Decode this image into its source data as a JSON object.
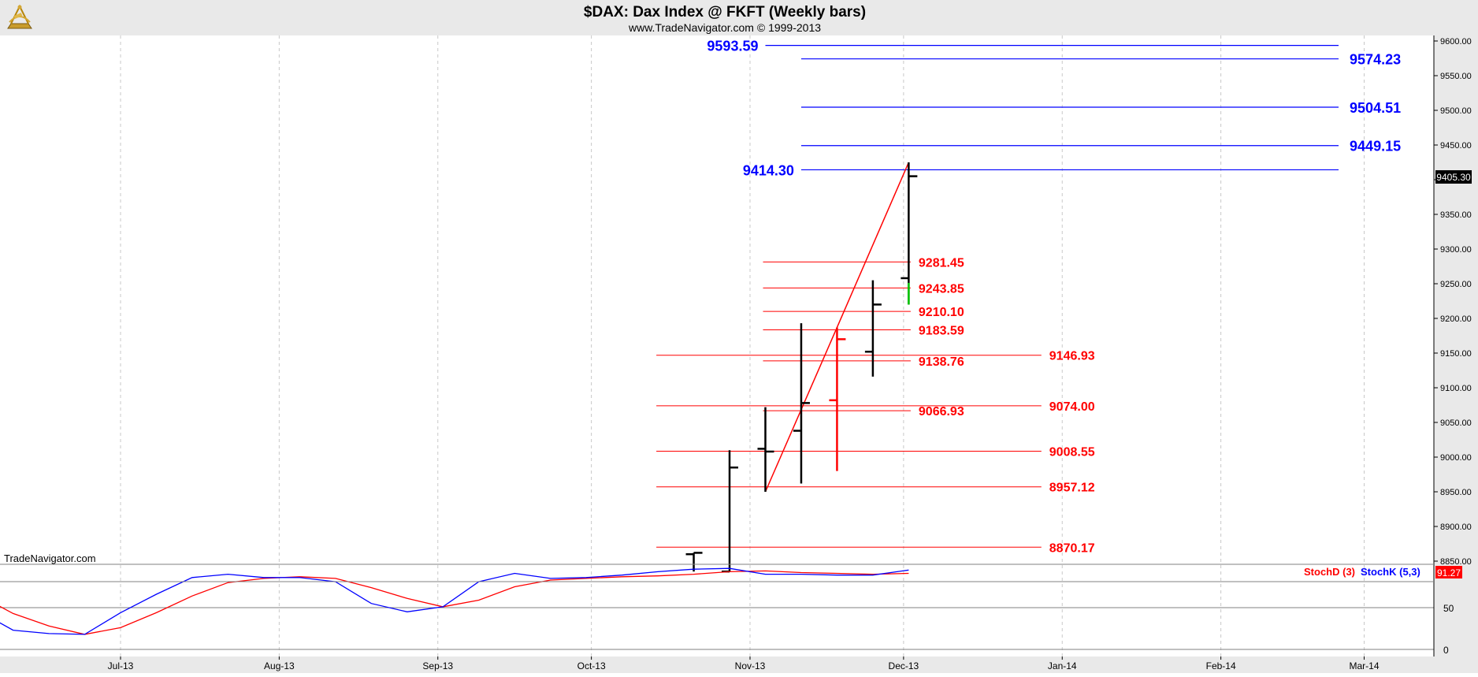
{
  "header": {
    "title": "$DAX:  Dax Index @ FKFT  (Weekly bars)",
    "subtitle": "www.TradeNavigator.com © 1999-2013"
  },
  "watermark": "TradeNavigator.com",
  "logo": {
    "icon": "trade-navigator-sextant-icon"
  },
  "colors": {
    "background": "#ffffff",
    "header_bg": "#e9e9e9",
    "grid": "#c8c8c8",
    "bar": "#000000",
    "down_bar": "#ff0000",
    "up_bar": "#00cc00",
    "projection": "#0000ff",
    "retracement": "#ff0000",
    "stoch_d": "#ff0000",
    "stoch_k": "#0000ff",
    "last_price_bg": "#000000"
  },
  "chart_data": {
    "type": "line",
    "price_panel": {
      "y_ticks": [
        9600,
        9550,
        9500,
        9450,
        9400,
        9350,
        9300,
        9250,
        9200,
        9150,
        9100,
        9050,
        9000,
        8950,
        8900,
        8850
      ],
      "y_tick_labels": [
        "9600.00",
        "9550.00",
        "9500.00",
        "9450.00",
        "9400.00",
        "9350.00",
        "9300.00",
        "9250.00",
        "9200.00",
        "9150.00",
        "9100.00",
        "9050.00",
        "9000.00",
        "8950.00",
        "8900.00",
        "8850.00"
      ],
      "ylim": [
        8835,
        9610
      ],
      "last_price": 9405.3,
      "last_price_label": "9405.30",
      "bars": [
        {
          "date": "2013-10-21",
          "open": 8860,
          "high": 8862,
          "low": 8835,
          "close": 8862,
          "color": "black"
        },
        {
          "date": "2013-10-28",
          "open": 8835,
          "high": 9010,
          "low": 8835,
          "close": 8985,
          "color": "black"
        },
        {
          "date": "2013-11-04",
          "open": 9012,
          "high": 9072,
          "low": 8950,
          "close": 9008,
          "color": "black"
        },
        {
          "date": "2013-11-11",
          "open": 9038,
          "high": 9193,
          "low": 8962,
          "close": 9078,
          "color": "black"
        },
        {
          "date": "2013-11-18",
          "open": 9082,
          "high": 9187,
          "low": 8980,
          "close": 9170,
          "color": "red"
        },
        {
          "date": "2013-11-25",
          "open": 9152,
          "high": 9255,
          "low": 9116,
          "close": 9220,
          "color": "black"
        },
        {
          "date": "2013-12-02",
          "open": 9258,
          "high": 9425,
          "low": 9220,
          "close": 9405,
          "color": "black"
        }
      ],
      "swing_lines": [
        {
          "from": {
            "date": "2013-11-04",
            "price": 8950
          },
          "to": {
            "date": "2013-11-18",
            "price": 9187
          }
        },
        {
          "from": {
            "date": "2013-11-18",
            "price": 9187
          },
          "to": {
            "date": "2013-12-02",
            "price": 9425
          }
        }
      ],
      "projection_levels": [
        {
          "value": 9593.59,
          "label": "9593.59",
          "label_side": "left",
          "from": "2013-11-04",
          "to": "2014-02-24"
        },
        {
          "value": 9574.23,
          "label": "9574.23",
          "label_side": "right",
          "from": "2013-11-11",
          "to": "2014-02-24"
        },
        {
          "value": 9504.51,
          "label": "9504.51",
          "label_side": "right",
          "from": "2013-11-11",
          "to": "2014-02-24"
        },
        {
          "value": 9449.15,
          "label": "9449.15",
          "label_side": "right",
          "from": "2013-11-11",
          "to": "2014-02-24"
        },
        {
          "value": 9414.3,
          "label": "9414.30",
          "label_side": "left",
          "from": "2013-11-11",
          "to": "2014-02-24"
        }
      ],
      "retracement_levels": [
        {
          "value": 9281.45,
          "label": "9281.45",
          "group": "short"
        },
        {
          "value": 9243.85,
          "label": "9243.85",
          "group": "short"
        },
        {
          "value": 9210.1,
          "label": "9210.10",
          "group": "short"
        },
        {
          "value": 9183.59,
          "label": "9183.59",
          "group": "short"
        },
        {
          "value": 9138.76,
          "label": "9138.76",
          "group": "short"
        },
        {
          "value": 9066.93,
          "label": "9066.93",
          "group": "short"
        },
        {
          "value": 9146.93,
          "label": "9146.93",
          "group": "long"
        },
        {
          "value": 9074.0,
          "label": "9074.00",
          "group": "long"
        },
        {
          "value": 9008.55,
          "label": "9008.55",
          "group": "long"
        },
        {
          "value": 8957.12,
          "label": "8957.12",
          "group": "long"
        },
        {
          "value": 8870.17,
          "label": "8870.17",
          "group": "long"
        }
      ]
    },
    "stochastic_panel": {
      "y_ticks": [
        50,
        0
      ],
      "y_tick_labels": [
        "50",
        "0"
      ],
      "ylim": [
        -5,
        111
      ],
      "legend": [
        "StochD (3)",
        "StochK (5,3)"
      ],
      "last_value_label": "91.27",
      "x": [
        "2013-06-03",
        "2013-06-10",
        "2013-06-17",
        "2013-06-24",
        "2013-07-01",
        "2013-07-08",
        "2013-07-15",
        "2013-07-22",
        "2013-07-29",
        "2013-08-05",
        "2013-08-12",
        "2013-08-19",
        "2013-08-26",
        "2013-09-02",
        "2013-09-09",
        "2013-09-16",
        "2013-09-23",
        "2013-09-30",
        "2013-10-07",
        "2013-10-14",
        "2013-10-21",
        "2013-10-28",
        "2013-11-04",
        "2013-11-11",
        "2013-11-18",
        "2013-11-25",
        "2013-12-02"
      ],
      "series": [
        {
          "name": "StochD (3)",
          "values": [
            66,
            43,
            28,
            18,
            26,
            44,
            64,
            80,
            85,
            87,
            85,
            74,
            61,
            51,
            59,
            75,
            83,
            85,
            87,
            88,
            90,
            93,
            94,
            92,
            91,
            90,
            91
          ]
        },
        {
          "name": "StochK (5,3)",
          "values": [
            47,
            23,
            19,
            18,
            44,
            66,
            86,
            90,
            86,
            86,
            81,
            55,
            45,
            51,
            81,
            91,
            85,
            86,
            89,
            93,
            96,
            97,
            90,
            90,
            89,
            89,
            95
          ]
        }
      ]
    },
    "x_axis": {
      "ticks": [
        {
          "date": "2013-07-01",
          "label": "Jul-13"
        },
        {
          "date": "2013-08-01",
          "label": "Aug-13"
        },
        {
          "date": "2013-09-01",
          "label": "Sep-13"
        },
        {
          "date": "2013-10-01",
          "label": "Oct-13"
        },
        {
          "date": "2013-11-01",
          "label": "Nov-13"
        },
        {
          "date": "2013-12-01",
          "label": "Dec-13"
        },
        {
          "date": "2014-01-01",
          "label": "Jan-14"
        },
        {
          "date": "2014-02-01",
          "label": "Feb-14"
        },
        {
          "date": "2014-03-01",
          "label": "Mar-14"
        }
      ]
    }
  }
}
